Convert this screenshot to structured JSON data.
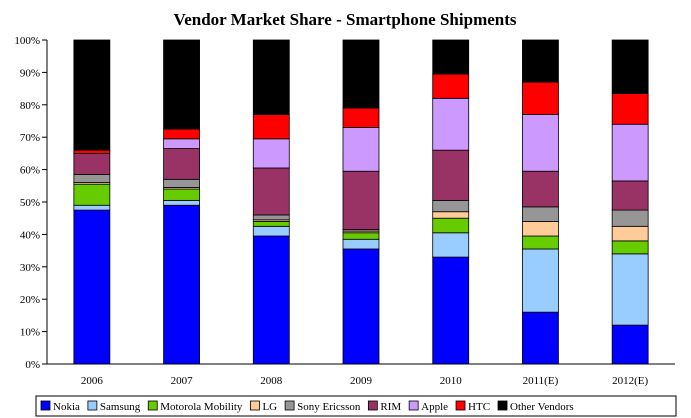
{
  "chart_data": {
    "type": "bar",
    "stacked": true,
    "percent": true,
    "title": "Vendor Market Share - Smartphone Shipments",
    "xlabel": "",
    "ylabel": "",
    "ylim": [
      0,
      100
    ],
    "yticks": [
      "0%",
      "10%",
      "20%",
      "30%",
      "40%",
      "50%",
      "60%",
      "70%",
      "80%",
      "90%",
      "100%"
    ],
    "legend_position": "bottom",
    "grid": false,
    "categories": [
      "2006",
      "2007",
      "2008",
      "2009",
      "2010",
      "2011(E)",
      "2012(E)"
    ],
    "series": [
      {
        "name": "Nokia",
        "color": "#0000ff",
        "values": [
          47.5,
          49.0,
          39.5,
          35.5,
          33.0,
          16.0,
          12.0
        ]
      },
      {
        "name": "Samsung",
        "color": "#99ccff",
        "values": [
          1.5,
          1.5,
          3.0,
          3.0,
          7.5,
          19.5,
          22.0
        ]
      },
      {
        "name": "Motorola Mobility",
        "color": "#66cc00",
        "values": [
          6.5,
          3.5,
          1.5,
          2.0,
          4.5,
          4.0,
          4.0
        ]
      },
      {
        "name": "LG",
        "color": "#ffcc99",
        "values": [
          0.5,
          0.5,
          0.5,
          0.5,
          2.0,
          4.5,
          4.5
        ]
      },
      {
        "name": "Sony Ericsson",
        "color": "#969696",
        "values": [
          2.5,
          2.5,
          1.5,
          0.5,
          3.5,
          4.5,
          5.0
        ]
      },
      {
        "name": "RIM",
        "color": "#993366",
        "values": [
          6.5,
          9.5,
          14.5,
          18.0,
          15.5,
          11.0,
          9.0
        ]
      },
      {
        "name": "Apple",
        "color": "#cc99ff",
        "values": [
          0.0,
          3.0,
          9.0,
          13.5,
          16.0,
          17.5,
          17.5
        ]
      },
      {
        "name": "HTC",
        "color": "#ff0000",
        "values": [
          1.0,
          3.0,
          7.5,
          6.0,
          7.5,
          10.0,
          9.5
        ]
      },
      {
        "name": "Other Vendors",
        "color": "#000000",
        "values": [
          34.0,
          27.5,
          23.0,
          21.0,
          10.5,
          13.0,
          16.5
        ]
      }
    ]
  }
}
